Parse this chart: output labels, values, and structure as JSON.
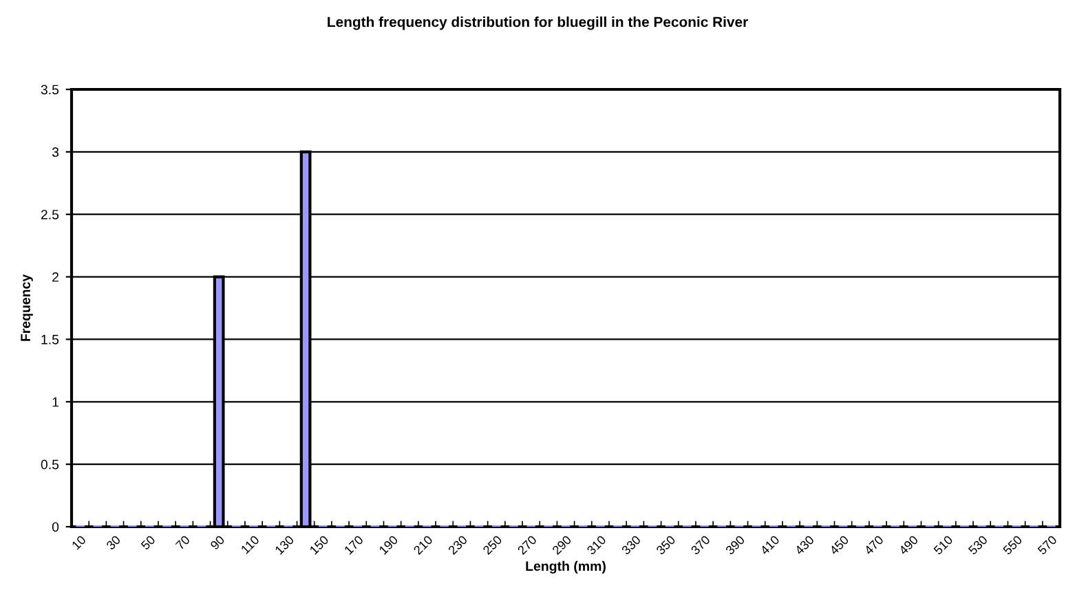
{
  "chart_data": {
    "type": "bar",
    "title": "Length frequency distribution for bluegill in the Peconic River",
    "xlabel": "Length (mm)",
    "ylabel": "Frequency",
    "categories": [
      "10",
      null,
      "30",
      null,
      "50",
      null,
      "70",
      null,
      "90",
      null,
      "110",
      null,
      "130",
      null,
      "150",
      null,
      "170",
      null,
      "190",
      null,
      "210",
      null,
      "230",
      null,
      "250",
      null,
      "270",
      null,
      "290",
      null,
      "310",
      null,
      "330",
      null,
      "350",
      null,
      "370",
      null,
      "390",
      null,
      "410",
      null,
      "430",
      null,
      "450",
      null,
      "470",
      null,
      "490",
      null,
      "510",
      null,
      "530",
      null,
      "550",
      null,
      "570"
    ],
    "values": [
      0,
      0,
      0,
      0,
      0,
      0,
      0,
      0,
      2,
      0,
      0,
      0,
      0,
      3,
      0,
      0,
      0,
      0,
      0,
      0,
      0,
      0,
      0,
      0,
      0,
      0,
      0,
      0,
      0,
      0,
      0,
      0,
      0,
      0,
      0,
      0,
      0,
      0,
      0,
      0,
      0,
      0,
      0,
      0,
      0,
      0,
      0,
      0,
      0,
      0,
      0,
      0,
      0,
      0,
      0,
      0,
      0
    ],
    "color": "#9999ff",
    "ylim": [
      0,
      3.5
    ],
    "yticks": [
      0,
      0.5,
      1,
      1.5,
      2,
      2.5,
      3,
      3.5
    ],
    "grid": "y"
  }
}
